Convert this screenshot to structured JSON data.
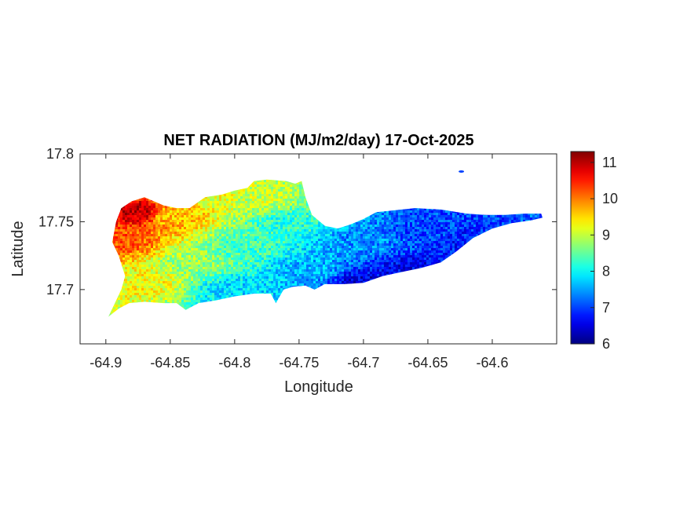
{
  "chart_data": {
    "type": "heatmap",
    "title": "NET RADIATION (MJ/m2/day) 17-Oct-2025",
    "xlabel": "Longitude",
    "ylabel": "Latitude",
    "xlim": [
      -64.92,
      -64.55
    ],
    "ylim": [
      17.66,
      17.8
    ],
    "x_ticks": [
      -64.9,
      -64.85,
      -64.8,
      -64.75,
      -64.7,
      -64.65,
      -64.6
    ],
    "x_tick_labels": [
      "-64.9",
      "-64.85",
      "-64.8",
      "-64.75",
      "-64.7",
      "-64.65",
      "-64.6"
    ],
    "y_ticks": [
      17.7,
      17.75,
      17.8
    ],
    "y_tick_labels": [
      "17.7",
      "17.75",
      "17.8"
    ],
    "colorbar": {
      "colormap": "jet",
      "range": [
        6,
        11.3
      ],
      "ticks": [
        6,
        7,
        8,
        9,
        10,
        11
      ],
      "tick_labels": [
        "6",
        "7",
        "8",
        "9",
        "10",
        "11"
      ]
    },
    "grid": false,
    "value_field": {
      "description_of_trend": "high in west, low in east",
      "anchors": [
        {
          "lon": -64.875,
          "lat": 17.757,
          "value": 11.0
        },
        {
          "lon": -64.89,
          "lat": 17.735,
          "value": 10.2
        },
        {
          "lon": -64.85,
          "lat": 17.755,
          "value": 9.6
        },
        {
          "lon": -64.82,
          "lat": 17.77,
          "value": 9.2
        },
        {
          "lon": -64.78,
          "lat": 17.765,
          "value": 9.0
        },
        {
          "lon": -64.87,
          "lat": 17.705,
          "value": 9.3
        },
        {
          "lon": -64.83,
          "lat": 17.72,
          "value": 8.8
        },
        {
          "lon": -64.79,
          "lat": 17.73,
          "value": 8.3
        },
        {
          "lon": -64.76,
          "lat": 17.75,
          "value": 8.2
        },
        {
          "lon": -64.8,
          "lat": 17.7,
          "value": 7.8
        },
        {
          "lon": -64.74,
          "lat": 17.715,
          "value": 7.6
        },
        {
          "lon": -64.7,
          "lat": 17.735,
          "value": 7.4
        },
        {
          "lon": -64.7,
          "lat": 17.705,
          "value": 6.5
        },
        {
          "lon": -64.66,
          "lat": 17.715,
          "value": 6.6
        },
        {
          "lon": -64.65,
          "lat": 17.745,
          "value": 7.0
        },
        {
          "lon": -64.62,
          "lat": 17.735,
          "value": 6.8
        },
        {
          "lon": -64.59,
          "lat": 17.75,
          "value": 7.0
        },
        {
          "lon": -64.565,
          "lat": 17.754,
          "value": 7.2
        }
      ]
    },
    "coastline": [
      [
        -64.898,
        17.68
      ],
      [
        -64.89,
        17.686
      ],
      [
        -64.882,
        17.69
      ],
      [
        -64.87,
        17.691
      ],
      [
        -64.855,
        17.69
      ],
      [
        -64.845,
        17.69
      ],
      [
        -64.838,
        17.685
      ],
      [
        -64.828,
        17.69
      ],
      [
        -64.815,
        17.692
      ],
      [
        -64.8,
        17.695
      ],
      [
        -64.785,
        17.697
      ],
      [
        -64.772,
        17.697
      ],
      [
        -64.768,
        17.69
      ],
      [
        -64.762,
        17.7
      ],
      [
        -64.755,
        17.702
      ],
      [
        -64.745,
        17.703
      ],
      [
        -64.738,
        17.7
      ],
      [
        -64.73,
        17.704
      ],
      [
        -64.715,
        17.704
      ],
      [
        -64.7,
        17.705
      ],
      [
        -64.685,
        17.71
      ],
      [
        -64.67,
        17.713
      ],
      [
        -64.655,
        17.716
      ],
      [
        -64.64,
        17.72
      ],
      [
        -64.628,
        17.728
      ],
      [
        -64.615,
        17.738
      ],
      [
        -64.6,
        17.745
      ],
      [
        -64.585,
        17.749
      ],
      [
        -64.57,
        17.751
      ],
      [
        -64.561,
        17.753
      ],
      [
        -64.562,
        17.756
      ],
      [
        -64.575,
        17.756
      ],
      [
        -64.59,
        17.755
      ],
      [
        -64.605,
        17.755
      ],
      [
        -64.62,
        17.756
      ],
      [
        -64.64,
        17.759
      ],
      [
        -64.66,
        17.76
      ],
      [
        -64.68,
        17.758
      ],
      [
        -64.69,
        17.757
      ],
      [
        -64.7,
        17.752
      ],
      [
        -64.71,
        17.748
      ],
      [
        -64.72,
        17.745
      ],
      [
        -64.73,
        17.747
      ],
      [
        -64.74,
        17.755
      ],
      [
        -64.745,
        17.768
      ],
      [
        -64.748,
        17.78
      ],
      [
        -64.753,
        17.778
      ],
      [
        -64.76,
        17.78
      ],
      [
        -64.775,
        17.781
      ],
      [
        -64.785,
        17.78
      ],
      [
        -64.79,
        17.775
      ],
      [
        -64.8,
        17.773
      ],
      [
        -64.81,
        17.77
      ],
      [
        -64.823,
        17.768
      ],
      [
        -64.835,
        17.76
      ],
      [
        -64.845,
        17.76
      ],
      [
        -64.855,
        17.762
      ],
      [
        -64.87,
        17.768
      ],
      [
        -64.88,
        17.765
      ],
      [
        -64.888,
        17.76
      ],
      [
        -64.892,
        17.75
      ],
      [
        -64.895,
        17.735
      ],
      [
        -64.89,
        17.725
      ],
      [
        -64.885,
        17.71
      ],
      [
        -64.888,
        17.7
      ],
      [
        -64.898,
        17.68
      ]
    ],
    "islets": [
      {
        "lon": -64.624,
        "lat": 17.787,
        "value": 7.0
      }
    ]
  }
}
